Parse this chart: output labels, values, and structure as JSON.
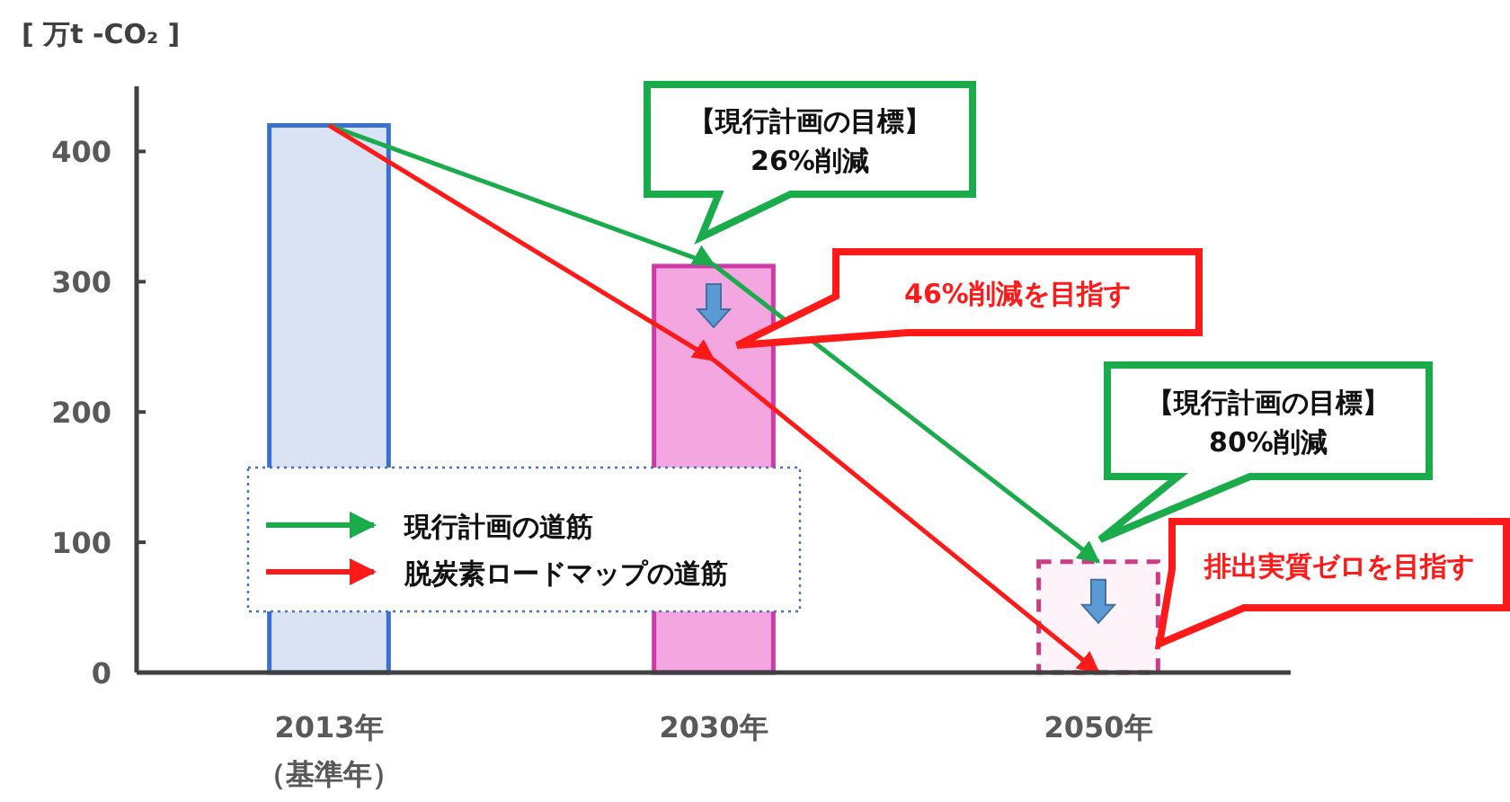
{
  "chart_data": {
    "type": "bar",
    "ylabel": "[ 万t -CO₂ ]",
    "categories": [
      "2013年（基準年）",
      "2030年",
      "2050年"
    ],
    "ylim": [
      0,
      450
    ],
    "yticks": [
      0,
      100,
      200,
      300,
      400
    ],
    "grid": false,
    "legend": "bottom left",
    "series": [
      {
        "values": [
          420,
          312,
          85
        ],
        "colors": [
          "#dae3f3",
          "#f4a6e0",
          "#fdf3f8"
        ],
        "line_style": [
          "solid",
          "solid",
          "dashed"
        ]
      },
      {
        "type": "line",
        "name": "現行計画の道筋",
        "color": "#1aab4b",
        "values": [
          420,
          313,
          85
        ]
      },
      {
        "type": "line",
        "name": "脱炭素ロードマップの道筋",
        "color": "#ff1a1a",
        "values": [
          420,
          240,
          0
        ]
      }
    ],
    "annotations": [
      "【現行計画の目標】\n26%削減",
      "46%削減を目指す",
      "【現行計画の目標】\n80%削減",
      "排出実質ゼロを目指す"
    ]
  }
}
